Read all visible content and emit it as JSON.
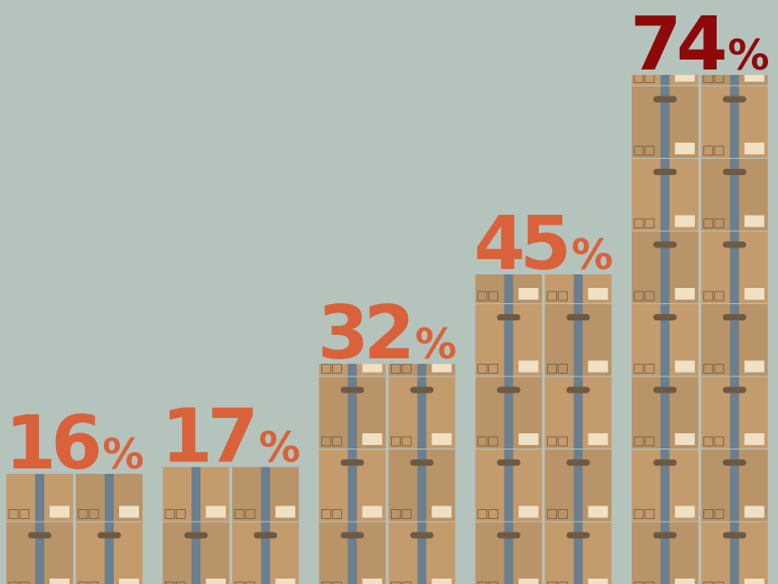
{
  "chart_data": {
    "type": "bar",
    "values": [
      16,
      17,
      32,
      45,
      74
    ],
    "value_labels": [
      "16%",
      "17%",
      "32%",
      "45%",
      "74%"
    ],
    "colors": [
      "#d9623b",
      "#d9623b",
      "#d9623b",
      "#d9623b",
      "#8e0a0a"
    ]
  }
}
